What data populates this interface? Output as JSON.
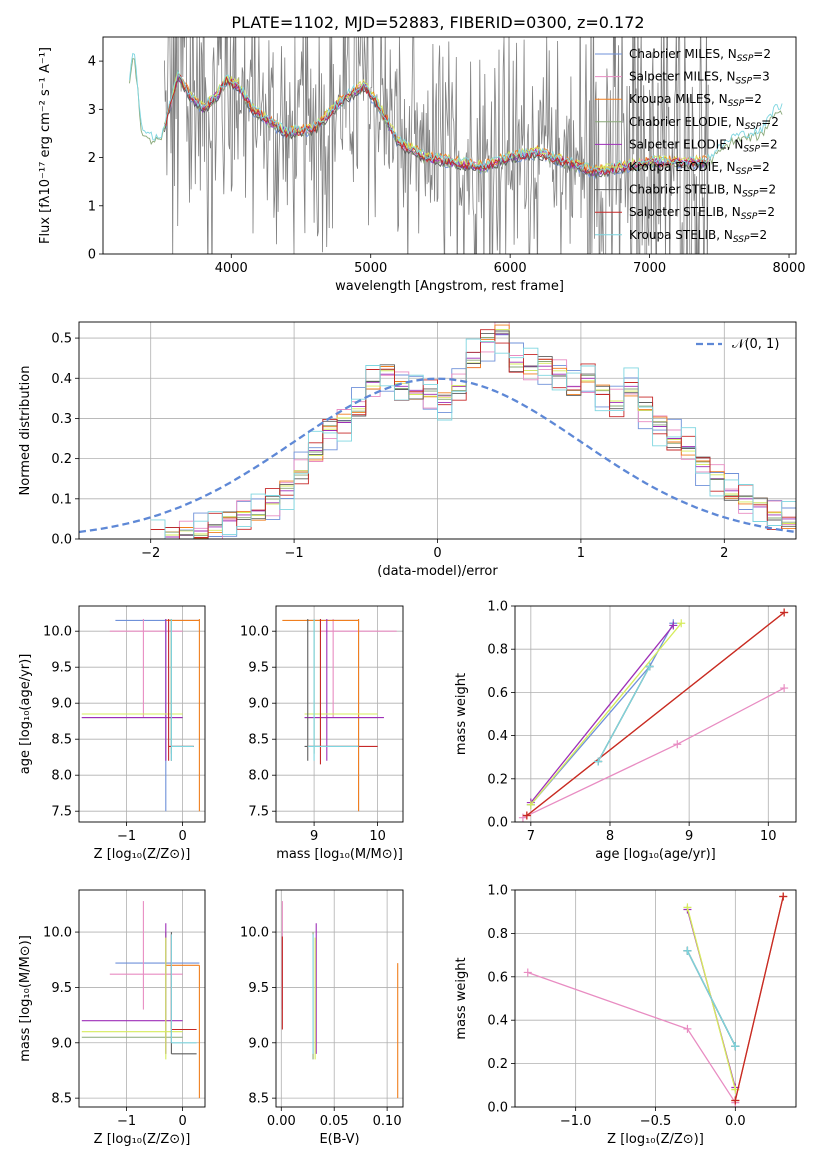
{
  "figure": {
    "title": "PLATE=1102, MJD=52883, FIBERID=0300, z=0.172"
  },
  "colors": {
    "gray": "#808080",
    "gauss": "#5e88d6",
    "series": [
      "#6f91d9",
      "#e88cc2",
      "#f07f1f",
      "#8aa879",
      "#9e2fb8",
      "#d6ec5c",
      "#5e5e5e",
      "#c62828",
      "#7fd6e0"
    ]
  },
  "legend": [
    {
      "model": "Chabrier MILES, N",
      "sub": "SSP",
      "n": "=2"
    },
    {
      "model": "Salpeter MILES, N",
      "sub": "SSP",
      "n": "=3"
    },
    {
      "model": "Kroupa MILES, N",
      "sub": "SSP",
      "n": "=2"
    },
    {
      "model": "Chabrier ELODIE, N",
      "sub": "SSP",
      "n": "=2"
    },
    {
      "model": "Salpeter ELODIE, N",
      "sub": "SSP",
      "n": "=2"
    },
    {
      "model": "Kroupa ELODIE, N",
      "sub": "SSP",
      "n": "=2"
    },
    {
      "model": "Chabrier STELIB, N",
      "sub": "SSP",
      "n": "=2"
    },
    {
      "model": "Salpeter STELIB, N",
      "sub": "SSP",
      "n": "=2"
    },
    {
      "model": "Kroupa STELIB, N",
      "sub": "SSP",
      "n": "=2"
    }
  ],
  "chart_data": [
    {
      "id": "spectrum",
      "type": "line",
      "xlabel": "wavelength [Angstrom, rest frame]",
      "ylabel": "Flux [fλ10⁻¹⁷ erg cm⁻² s⁻¹ A⁻¹]",
      "xlim": [
        3080,
        8050
      ],
      "ylim": [
        0,
        4.5
      ],
      "xticks": [
        4000,
        5000,
        6000,
        7000,
        8000
      ],
      "yticks": [
        0,
        1,
        2,
        3,
        4
      ],
      "data_range": [
        3520,
        7420
      ],
      "continuum": [
        [
          3270,
          3.6
        ],
        [
          3300,
          4.3
        ],
        [
          3360,
          2.5
        ],
        [
          3400,
          2.4
        ],
        [
          3500,
          2.4
        ],
        [
          3620,
          3.7
        ],
        [
          3700,
          3.3
        ],
        [
          3800,
          3.0
        ],
        [
          3900,
          3.3
        ],
        [
          3960,
          3.6
        ],
        [
          4050,
          3.5
        ],
        [
          4150,
          3.0
        ],
        [
          4300,
          2.7
        ],
        [
          4400,
          2.5
        ],
        [
          4600,
          2.6
        ],
        [
          4800,
          3.2
        ],
        [
          4950,
          3.5
        ],
        [
          5050,
          3.1
        ],
        [
          5200,
          2.3
        ],
        [
          5400,
          2.0
        ],
        [
          5600,
          1.9
        ],
        [
          5800,
          1.8
        ],
        [
          6000,
          2.0
        ],
        [
          6200,
          2.1
        ],
        [
          6400,
          1.9
        ],
        [
          6600,
          1.7
        ],
        [
          6800,
          1.8
        ],
        [
          7000,
          1.9
        ],
        [
          7200,
          1.9
        ],
        [
          7400,
          1.9
        ],
        [
          7600,
          2.4
        ],
        [
          7800,
          2.5
        ],
        [
          7900,
          3.0
        ]
      ]
    },
    {
      "id": "residuals",
      "type": "histogram",
      "xlabel": "(data-model)/error",
      "ylabel": "Normed distribution",
      "xlim": [
        -2.5,
        2.5
      ],
      "ylim": [
        0,
        0.54
      ],
      "xticks": [
        -2,
        -1,
        0,
        1,
        2
      ],
      "yticks": [
        0,
        0.1,
        0.2,
        0.3,
        0.4,
        0.5
      ],
      "legend_label": "𝒩(0, 1)",
      "bin_edges_start": -2.0,
      "bin_width": 0.1,
      "values": [
        0.0,
        0.005,
        0.01,
        0.02,
        0.03,
        0.045,
        0.06,
        0.07,
        0.09,
        0.12,
        0.17,
        0.22,
        0.27,
        0.29,
        0.33,
        0.39,
        0.41,
        0.38,
        0.37,
        0.36,
        0.34,
        0.38,
        0.45,
        0.49,
        0.51,
        0.44,
        0.43,
        0.43,
        0.41,
        0.38,
        0.4,
        0.36,
        0.34,
        0.38,
        0.32,
        0.28,
        0.25,
        0.23,
        0.18,
        0.15,
        0.12,
        0.1,
        0.08,
        0.06,
        0.05,
        0.05,
        0.04,
        0.03,
        0.03,
        0.025
      ]
    },
    {
      "id": "age_vs_Z",
      "type": "errorbar",
      "xlabel": "Z [log₁₀(Z/Z⊙)]",
      "ylabel": "age  [log₁₀(age/yr)]",
      "xlim": [
        -1.85,
        0.4
      ],
      "ylim": [
        7.35,
        10.35
      ],
      "xticks": [
        -1,
        0
      ],
      "yticks": [
        7.5,
        8.0,
        8.5,
        9.0,
        9.5,
        10.0
      ],
      "points": [
        {
          "x": -0.3,
          "y": 10.15,
          "xe": [
            -1.2,
            0.3
          ],
          "ye": [
            7.5,
            10.17
          ],
          "c": 0
        },
        {
          "x": -0.7,
          "y": 10.0,
          "xe": [
            -1.3,
            0.0
          ],
          "ye": [
            8.8,
            10.17
          ],
          "c": 1
        },
        {
          "x": 0.3,
          "y": 10.15,
          "xe": [
            -0.3,
            0.3
          ],
          "ye": [
            7.5,
            10.17
          ],
          "c": 2
        },
        {
          "x": -0.2,
          "y": 8.8,
          "xe": [
            -1.8,
            0.0
          ],
          "ye": [
            8.3,
            10.17
          ],
          "c": 3
        },
        {
          "x": -0.3,
          "y": 8.8,
          "xe": [
            -1.8,
            0.0
          ],
          "ye": [
            8.2,
            10.17
          ],
          "c": 4
        },
        {
          "x": -0.2,
          "y": 8.85,
          "xe": [
            -1.8,
            0.0
          ],
          "ye": [
            8.5,
            10.17
          ],
          "c": 5
        },
        {
          "x": -0.2,
          "y": 8.4,
          "xe": [
            -0.2,
            0.2
          ],
          "ye": [
            8.2,
            10.17
          ],
          "c": 6
        },
        {
          "x": -0.25,
          "y": 8.4,
          "xe": [
            -0.25,
            0.2
          ],
          "ye": [
            8.2,
            10.17
          ],
          "c": 7
        },
        {
          "x": -0.2,
          "y": 8.4,
          "xe": [
            -0.2,
            0.2
          ],
          "ye": [
            8.2,
            10.17
          ],
          "c": 8
        }
      ]
    },
    {
      "id": "age_vs_mass",
      "type": "errorbar",
      "xlabel": "mass [log₁₀(M/M⊙)]",
      "ylabel": "",
      "xlim": [
        8.4,
        10.4
      ],
      "ylim": [
        7.35,
        10.35
      ],
      "xticks": [
        9,
        10
      ],
      "yticks": [
        7.5,
        8.0,
        8.5,
        9.0,
        9.5,
        10.0
      ],
      "points": [
        {
          "x": 9.7,
          "y": 10.15,
          "xe": [
            8.9,
            9.7
          ],
          "ye": [
            7.5,
            10.17
          ],
          "c": 0
        },
        {
          "x": 9.3,
          "y": 10.0,
          "xe": [
            9.1,
            10.3
          ],
          "ye": [
            8.8,
            10.17
          ],
          "c": 1
        },
        {
          "x": 9.7,
          "y": 10.15,
          "xe": [
            8.5,
            9.7
          ],
          "ye": [
            7.5,
            10.17
          ],
          "c": 2
        },
        {
          "x": 9.0,
          "y": 8.8,
          "xe": [
            8.85,
            10.0
          ],
          "ye": [
            8.3,
            10.17
          ],
          "c": 3
        },
        {
          "x": 9.2,
          "y": 8.8,
          "xe": [
            8.85,
            10.1
          ],
          "ye": [
            8.2,
            10.17
          ],
          "c": 4
        },
        {
          "x": 9.1,
          "y": 8.85,
          "xe": [
            8.85,
            10.0
          ],
          "ye": [
            8.5,
            10.17
          ],
          "c": 5
        },
        {
          "x": 8.9,
          "y": 8.4,
          "xe": [
            8.85,
            9.7
          ],
          "ye": [
            8.2,
            10.17
          ],
          "c": 6
        },
        {
          "x": 9.1,
          "y": 8.4,
          "xe": [
            8.9,
            10.0
          ],
          "ye": [
            8.15,
            10.17
          ],
          "c": 7
        },
        {
          "x": 9.0,
          "y": 8.4,
          "xe": [
            8.9,
            9.7
          ],
          "ye": [
            8.2,
            10.17
          ],
          "c": 8
        }
      ]
    },
    {
      "id": "weight_vs_age",
      "type": "line",
      "xlabel": "age  [log₁₀(age/yr)]",
      "ylabel": "mass weight",
      "xlim": [
        6.8,
        10.35
      ],
      "ylim": [
        0,
        1
      ],
      "xticks": [
        7,
        8,
        9,
        10
      ],
      "yticks": [
        0,
        0.2,
        0.4,
        0.6,
        0.8,
        1.0
      ],
      "series": [
        {
          "c": 0,
          "x": [
            7.0,
            8.5,
            8.8
          ],
          "y": [
            0.08,
            0.72,
            0.92
          ]
        },
        {
          "c": 1,
          "x": [
            6.9,
            8.85,
            10.2
          ],
          "y": [
            0.02,
            0.36,
            0.62
          ]
        },
        {
          "c": 2,
          "x": [
            6.95,
            10.2
          ],
          "y": [
            0.03,
            0.97
          ]
        },
        {
          "c": 3,
          "x": [
            7.85,
            8.5
          ],
          "y": [
            0.28,
            0.72
          ]
        },
        {
          "c": 4,
          "x": [
            7.0,
            8.8
          ],
          "y": [
            0.09,
            0.91
          ]
        },
        {
          "c": 5,
          "x": [
            7.0,
            8.9
          ],
          "y": [
            0.08,
            0.92
          ]
        },
        {
          "c": 6,
          "x": [
            7.85,
            8.5
          ],
          "y": [
            0.28,
            0.72
          ]
        },
        {
          "c": 7,
          "x": [
            6.95,
            10.2
          ],
          "y": [
            0.03,
            0.97
          ]
        },
        {
          "c": 8,
          "x": [
            7.85,
            8.5
          ],
          "y": [
            0.28,
            0.72
          ]
        }
      ]
    },
    {
      "id": "mass_vs_Z",
      "type": "errorbar",
      "xlabel": "Z [log₁₀(Z/Z⊙)]",
      "ylabel": "mass [log₁₀(M/M⊙)]",
      "xlim": [
        -1.85,
        0.4
      ],
      "ylim": [
        8.42,
        10.38
      ],
      "xticks": [
        -1,
        0
      ],
      "yticks": [
        8.5,
        9.0,
        9.5,
        10.0
      ],
      "points": [
        {
          "x": -1.2,
          "y": 9.72,
          "xe": [
            -1.2,
            0.3
          ],
          "ye": [
            9.72,
            9.72
          ],
          "c": 0
        },
        {
          "x": -0.7,
          "y": 9.62,
          "xe": [
            -1.3,
            0.0
          ],
          "ye": [
            9.3,
            10.28
          ],
          "c": 1
        },
        {
          "x": 0.3,
          "y": 9.7,
          "xe": [
            -0.3,
            0.3
          ],
          "ye": [
            8.5,
            9.7
          ],
          "c": 2
        },
        {
          "x": -0.3,
          "y": 9.05,
          "xe": [
            -1.8,
            0.0
          ],
          "ye": [
            8.9,
            10.0
          ],
          "c": 3
        },
        {
          "x": -0.3,
          "y": 9.2,
          "xe": [
            -1.8,
            0.0
          ],
          "ye": [
            8.9,
            10.08
          ],
          "c": 4
        },
        {
          "x": -0.3,
          "y": 9.1,
          "xe": [
            -1.8,
            0.0
          ],
          "ye": [
            8.85,
            9.95
          ],
          "c": 5
        },
        {
          "x": -0.2,
          "y": 8.9,
          "xe": [
            -0.2,
            0.25
          ],
          "ye": [
            8.9,
            10.0
          ],
          "c": 6
        },
        {
          "x": -0.2,
          "y": 9.12,
          "xe": [
            -0.2,
            0.25
          ],
          "ye": [
            9.12,
            9.98
          ],
          "c": 7
        },
        {
          "x": -0.2,
          "y": 9.0,
          "xe": [
            -0.2,
            0.25
          ],
          "ye": [
            9.0,
            9.98
          ],
          "c": 8
        }
      ]
    },
    {
      "id": "mass_vs_ebv",
      "type": "errorbar",
      "xlabel": "E(B-V)",
      "ylabel": "",
      "xlim": [
        -0.005,
        0.115
      ],
      "ylim": [
        8.42,
        10.38
      ],
      "xticks": [
        0.0,
        0.05,
        0.1
      ],
      "yticks": [
        8.5,
        9.0,
        9.5,
        10.0
      ],
      "points": [
        {
          "x": 0.001,
          "y": 10.28,
          "xe": [
            0.001,
            0.001
          ],
          "ye": [
            9.3,
            10.28
          ],
          "c": 1
        },
        {
          "x": 0.11,
          "y": 9.7,
          "xe": [
            0.11,
            0.11
          ],
          "ye": [
            8.5,
            9.72
          ],
          "c": 2
        },
        {
          "x": 0.03,
          "y": 9.9,
          "xe": [
            0.03,
            0.03
          ],
          "ye": [
            8.85,
            10.0
          ],
          "c": 3
        },
        {
          "x": 0.033,
          "y": 10.05,
          "xe": [
            0.033,
            0.033
          ],
          "ye": [
            8.9,
            10.08
          ],
          "c": 4
        },
        {
          "x": 0.032,
          "y": 9.95,
          "xe": [
            0.032,
            0.032
          ],
          "ye": [
            8.85,
            9.95
          ],
          "c": 5
        },
        {
          "x": 0.001,
          "y": 9.96,
          "xe": [
            0.001,
            0.001
          ],
          "ye": [
            9.12,
            9.96
          ],
          "c": 7
        },
        {
          "x": 0.03,
          "y": 9.9,
          "xe": [
            0.03,
            0.03
          ],
          "ye": [
            8.9,
            9.98
          ],
          "c": 8
        }
      ]
    },
    {
      "id": "weight_vs_Z",
      "type": "line",
      "xlabel": "Z [log₁₀(Z/Z⊙)]",
      "ylabel": "mass weight",
      "xlim": [
        -1.38,
        0.38
      ],
      "ylim": [
        0,
        1
      ],
      "xticks": [
        -1.0,
        -0.5,
        0.0
      ],
      "yticks": [
        0,
        0.2,
        0.4,
        0.6,
        0.8,
        1.0
      ],
      "series": [
        {
          "c": 0,
          "x": [
            -0.3,
            0.0
          ],
          "y": [
            0.72,
            0.28
          ]
        },
        {
          "c": 1,
          "x": [
            -1.3,
            -0.3,
            0.0
          ],
          "y": [
            0.62,
            0.36,
            0.02
          ]
        },
        {
          "c": 2,
          "x": [
            0.0,
            0.3
          ],
          "y": [
            0.03,
            0.97
          ]
        },
        {
          "c": 3,
          "x": [
            -0.3,
            0.0
          ],
          "y": [
            0.72,
            0.28
          ]
        },
        {
          "c": 4,
          "x": [
            -0.3,
            0.0
          ],
          "y": [
            0.91,
            0.09
          ]
        },
        {
          "c": 5,
          "x": [
            -0.3,
            0.0
          ],
          "y": [
            0.92,
            0.08
          ]
        },
        {
          "c": 6,
          "x": [
            -0.3,
            0.0
          ],
          "y": [
            0.72,
            0.28
          ]
        },
        {
          "c": 7,
          "x": [
            0.0,
            0.3
          ],
          "y": [
            0.03,
            0.97
          ]
        },
        {
          "c": 8,
          "x": [
            -0.3,
            0.0
          ],
          "y": [
            0.72,
            0.28
          ]
        }
      ]
    }
  ]
}
